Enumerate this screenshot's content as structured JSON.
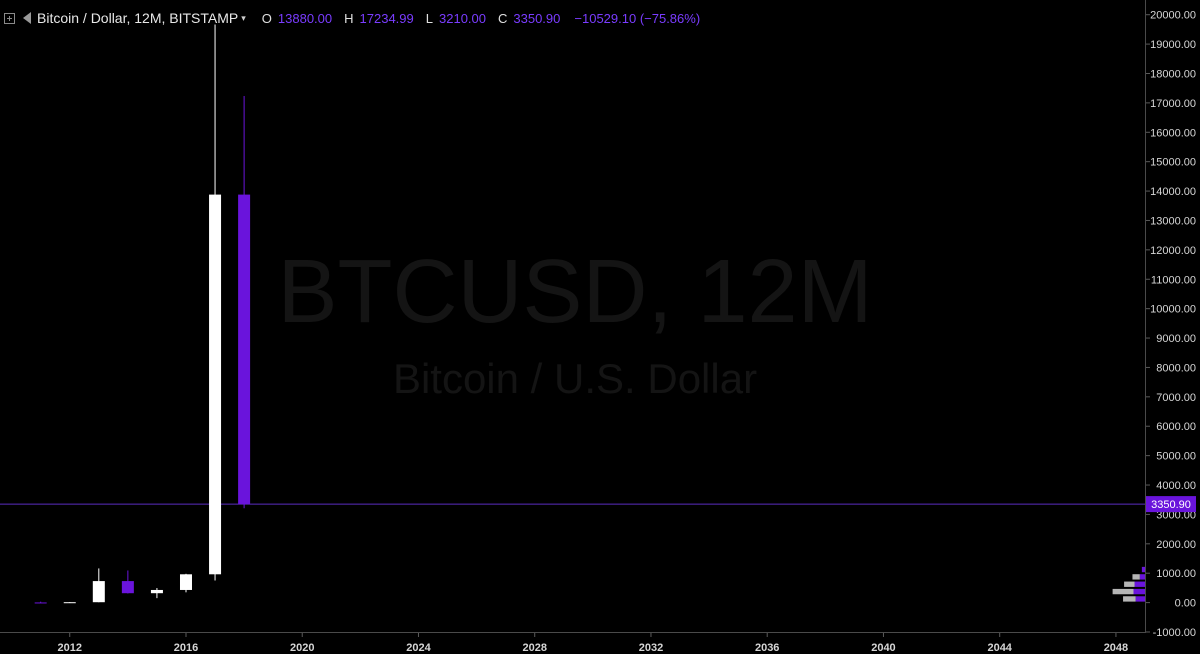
{
  "legend": {
    "symbol": "Bitcoin / Dollar, 12M, BITSTAMP",
    "caret": "▾",
    "open_label": "O",
    "open": "13880.00",
    "high_label": "H",
    "high": "17234.99",
    "low_label": "L",
    "low": "3210.00",
    "close_label": "C",
    "close": "3350.90",
    "change": "−10529.10 (−75.86%)"
  },
  "watermark": {
    "line1": "BTCUSD, 12M",
    "line2": "Bitcoin / U.S. Dollar"
  },
  "colors": {
    "background": "#000000",
    "up": "#ffffff",
    "down": "#6a14dc",
    "accent": "#7a3cff",
    "axis_text": "#d6d6d6"
  },
  "chart_data": {
    "type": "candlestick",
    "title": "Bitcoin / Dollar, 12M, BITSTAMP",
    "ylim": [
      -1000,
      20500
    ],
    "xlim": [
      2009.6,
      2049
    ],
    "x_ticks": [
      "2012",
      "2016",
      "2020",
      "2024",
      "2028",
      "2032",
      "2036",
      "2040",
      "2044",
      "2048"
    ],
    "y_ticks": [
      "-1000.00",
      "0.00",
      "1000.00",
      "2000.00",
      "3000.00",
      "4000.00",
      "5000.00",
      "6000.00",
      "7000.00",
      "8000.00",
      "9000.00",
      "10000.00",
      "11000.00",
      "12000.00",
      "13000.00",
      "14000.00",
      "15000.00",
      "16000.00",
      "17000.00",
      "18000.00",
      "19000.00",
      "20000.00"
    ],
    "grid": false,
    "last_price": "3350.90",
    "candles": [
      {
        "year": 2011,
        "open": 5,
        "high": 32,
        "low": 2,
        "close": 4.7
      },
      {
        "year": 2012,
        "open": 4.7,
        "high": 16,
        "low": 4,
        "close": 13.5
      },
      {
        "year": 2013,
        "open": 13.5,
        "high": 1163,
        "low": 13,
        "close": 732
      },
      {
        "year": 2014,
        "open": 732,
        "high": 1093,
        "low": 310,
        "close": 320
      },
      {
        "year": 2015,
        "open": 320,
        "high": 495,
        "low": 152,
        "close": 430
      },
      {
        "year": 2016,
        "open": 430,
        "high": 980,
        "low": 350,
        "close": 963
      },
      {
        "year": 2017,
        "open": 963,
        "high": 19666,
        "low": 752,
        "close": 13880
      },
      {
        "year": 2018,
        "open": 13880,
        "high": 17234.99,
        "low": 3210,
        "close": 3350.9
      }
    ],
    "volume_profile": [
      {
        "low": 0,
        "high": 250,
        "up": 0.6,
        "down": 0.45
      },
      {
        "low": 250,
        "high": 500,
        "up": 1.0,
        "down": 0.55
      },
      {
        "low": 500,
        "high": 750,
        "up": 0.5,
        "down": 0.5
      },
      {
        "low": 750,
        "high": 1000,
        "up": 0.35,
        "down": 0.25
      },
      {
        "low": 1000,
        "high": 1250,
        "up": 0.0,
        "down": 0.15
      }
    ]
  }
}
